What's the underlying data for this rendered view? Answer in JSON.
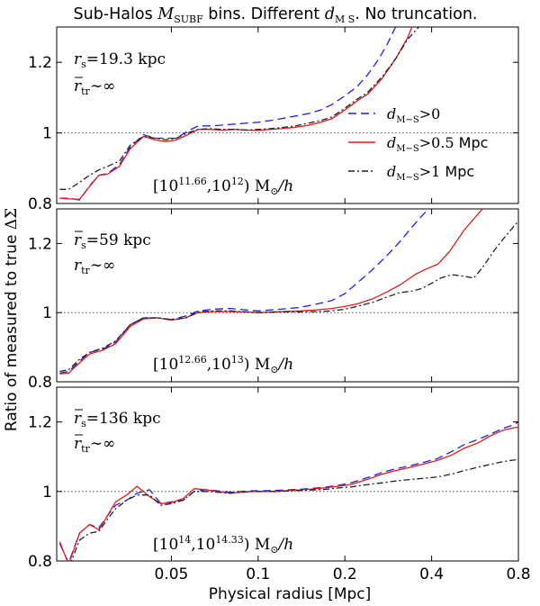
{
  "figure": {
    "title_parts": [
      "Sub-Halos ",
      "M",
      "SUBF",
      " bins. Different ",
      "d",
      "M S",
      ". No truncation."
    ],
    "xlabel": "Physical radius [Mpc]",
    "ylabel_parts": [
      "Ratio of measured to true ",
      "ΔΣ"
    ]
  },
  "legend": [
    {
      "name": "d",
      "sub": "M−S",
      "cond": ">0",
      "unit": ""
    },
    {
      "name": "d",
      "sub": "M−S",
      "cond": ">0.5",
      "unit": " Mpc"
    },
    {
      "name": "d",
      "sub": "M−S",
      "cond": ">1",
      "unit": " Mpc"
    }
  ],
  "panels": [
    {
      "line1": {
        "sym": "r",
        "bar": false,
        "sub": "s",
        "rel": "=19.3 ",
        "unit": "kpc"
      },
      "line2": {
        "sym": "r",
        "bar": true,
        "sub": "tr",
        "rel": "∼∞"
      },
      "bin": {
        "lo_exp": "11.66",
        "hi_exp": "12",
        "unit": "M",
        "sun": "⊙",
        "h": "/h"
      }
    },
    {
      "line1": {
        "sym": "r",
        "bar": true,
        "sub": "s",
        "rel": "=59 ",
        "unit": "kpc"
      },
      "line2": {
        "sym": "r",
        "bar": false,
        "sub": "tr",
        "rel": "∼∞"
      },
      "bin": {
        "lo_exp": "12.66",
        "hi_exp": "13",
        "unit": "M",
        "sun": "⊙",
        "h": "/h"
      }
    },
    {
      "line1": {
        "sym": "r",
        "bar": true,
        "sub": "s",
        "rel": "=136 ",
        "unit": "kpc"
      },
      "line2": {
        "sym": "r",
        "bar": true,
        "sub": "tr",
        "rel": "∼∞"
      },
      "bin": {
        "lo_exp": "14",
        "hi_exp": "14.33",
        "unit": "M",
        "sun": "⊙",
        "h": "/h"
      }
    }
  ],
  "chart_data": {
    "type": "line",
    "title": "Sub-Halos M_SUBF bins. Different d_M S. No truncation.",
    "xlabel": "Physical radius [Mpc]",
    "ylabel": "Ratio of measured to true ΔΣ",
    "xscale": "log",
    "xlim": [
      0.02,
      0.8
    ],
    "ylim": [
      0.8,
      1.3
    ],
    "xticks": [
      0.05,
      0.1,
      0.2,
      0.4,
      0.8
    ],
    "xtick_labels": [
      "0.05",
      "0.1",
      "0.2",
      "0.4",
      "0.8"
    ],
    "yticks": [
      0.8,
      1.0,
      1.2
    ],
    "ytick_labels": [
      "0.8",
      "1",
      "1.2"
    ],
    "reference_line": 1.0,
    "series_styles": [
      {
        "name": "d_M-S>0",
        "color": "#1f1fe0",
        "dash": "9,5"
      },
      {
        "name": "d_M-S>0.5 Mpc",
        "color": "#e01c1c",
        "dash": ""
      },
      {
        "name": "d_M-S>1 Mpc",
        "color": "#222222",
        "dash": "7,3,2,3"
      }
    ],
    "panels": [
      {
        "label": "[10^11.66, 10^12) Msun/h",
        "series": [
          {
            "name": "d_M-S>0",
            "x": [
              0.0205,
              0.022,
              0.024,
              0.026,
              0.028,
              0.03,
              0.033,
              0.036,
              0.04,
              0.044,
              0.048,
              0.052,
              0.057,
              0.062,
              0.068,
              0.075,
              0.083,
              0.092,
              0.1,
              0.11,
              0.12,
              0.135,
              0.15,
              0.165,
              0.18,
              0.2,
              0.22,
              0.24,
              0.26,
              0.28,
              0.3,
              0.32
            ],
            "y": [
              0.815,
              0.815,
              0.81,
              0.85,
              0.88,
              0.885,
              0.91,
              0.96,
              0.995,
              0.985,
              0.985,
              0.985,
              1.005,
              1.02,
              1.02,
              1.022,
              1.025,
              1.028,
              1.03,
              1.035,
              1.04,
              1.048,
              1.055,
              1.065,
              1.08,
              1.105,
              1.13,
              1.165,
              1.205,
              1.25,
              1.3,
              1.34
            ]
          },
          {
            "name": "d_M-S>0.5 Mpc",
            "x": [
              0.0205,
              0.022,
              0.024,
              0.026,
              0.028,
              0.03,
              0.033,
              0.036,
              0.04,
              0.044,
              0.048,
              0.052,
              0.057,
              0.062,
              0.068,
              0.075,
              0.083,
              0.092,
              0.1,
              0.11,
              0.12,
              0.135,
              0.15,
              0.165,
              0.18,
              0.2,
              0.22,
              0.24,
              0.27,
              0.3,
              0.33,
              0.35
            ],
            "y": [
              0.815,
              0.813,
              0.812,
              0.848,
              0.88,
              0.883,
              0.905,
              0.955,
              0.99,
              0.98,
              0.975,
              0.98,
              0.995,
              1.01,
              1.01,
              1.008,
              1.01,
              1.008,
              1.007,
              1.01,
              1.012,
              1.016,
              1.022,
              1.03,
              1.04,
              1.065,
              1.09,
              1.11,
              1.155,
              1.21,
              1.27,
              1.32
            ]
          },
          {
            "name": "d_M-S>1 Mpc",
            "x": [
              0.0205,
              0.022,
              0.024,
              0.026,
              0.028,
              0.03,
              0.033,
              0.036,
              0.04,
              0.044,
              0.048,
              0.052,
              0.057,
              0.062,
              0.068,
              0.075,
              0.083,
              0.092,
              0.1,
              0.11,
              0.12,
              0.135,
              0.15,
              0.165,
              0.18,
              0.2,
              0.22,
              0.24,
              0.27,
              0.3,
              0.33,
              0.37
            ],
            "y": [
              0.84,
              0.84,
              0.86,
              0.88,
              0.895,
              0.905,
              0.92,
              0.965,
              0.99,
              0.985,
              0.98,
              0.985,
              1.0,
              1.01,
              1.012,
              1.01,
              1.01,
              1.008,
              1.01,
              1.012,
              1.015,
              1.02,
              1.028,
              1.035,
              1.045,
              1.07,
              1.095,
              1.115,
              1.16,
              1.21,
              1.265,
              1.31
            ]
          }
        ]
      },
      {
        "label": "[10^12.66, 10^13) Msun/h",
        "series": [
          {
            "name": "d_M-S>0",
            "x": [
              0.0205,
              0.022,
              0.024,
              0.026,
              0.029,
              0.032,
              0.036,
              0.04,
              0.045,
              0.05,
              0.056,
              0.062,
              0.07,
              0.08,
              0.09,
              0.1,
              0.12,
              0.14,
              0.16,
              0.18,
              0.2,
              0.22,
              0.25,
              0.28,
              0.31,
              0.34,
              0.37,
              0.4
            ],
            "y": [
              0.825,
              0.83,
              0.86,
              0.885,
              0.895,
              0.915,
              0.965,
              0.985,
              0.985,
              0.98,
              0.99,
              1.005,
              1.01,
              1.012,
              1.008,
              1.005,
              1.01,
              1.015,
              1.025,
              1.035,
              1.055,
              1.085,
              1.125,
              1.165,
              1.205,
              1.245,
              1.28,
              1.31
            ]
          },
          {
            "name": "d_M-S>0.5 Mpc",
            "x": [
              0.0205,
              0.022,
              0.024,
              0.026,
              0.029,
              0.032,
              0.036,
              0.04,
              0.045,
              0.05,
              0.056,
              0.062,
              0.07,
              0.08,
              0.09,
              0.1,
              0.12,
              0.14,
              0.16,
              0.18,
              0.2,
              0.22,
              0.25,
              0.28,
              0.31,
              0.35,
              0.38,
              0.42,
              0.46,
              0.52,
              0.6
            ],
            "y": [
              0.823,
              0.825,
              0.855,
              0.88,
              0.892,
              0.91,
              0.96,
              0.982,
              0.985,
              0.978,
              0.985,
              1.0,
              1.003,
              1.003,
              1.002,
              1.0,
              1.003,
              1.005,
              1.008,
              1.012,
              1.018,
              1.025,
              1.04,
              1.06,
              1.08,
              1.11,
              1.125,
              1.14,
              1.175,
              1.24,
              1.3
            ]
          },
          {
            "name": "d_M-S>1 Mpc",
            "x": [
              0.0205,
              0.022,
              0.024,
              0.026,
              0.029,
              0.032,
              0.036,
              0.04,
              0.045,
              0.05,
              0.056,
              0.062,
              0.07,
              0.08,
              0.09,
              0.1,
              0.12,
              0.14,
              0.16,
              0.18,
              0.2,
              0.22,
              0.25,
              0.28,
              0.31,
              0.34,
              0.37,
              0.4,
              0.43,
              0.47,
              0.52,
              0.56,
              0.6,
              0.66,
              0.72,
              0.8
            ],
            "y": [
              0.83,
              0.835,
              0.865,
              0.885,
              0.898,
              0.918,
              0.965,
              0.985,
              0.985,
              0.98,
              0.985,
              1.002,
              1.005,
              1.005,
              1.002,
              1.0,
              1.002,
              1.002,
              1.003,
              1.005,
              1.01,
              1.018,
              1.03,
              1.045,
              1.058,
              1.062,
              1.07,
              1.085,
              1.1,
              1.11,
              1.105,
              1.1,
              1.13,
              1.18,
              1.22,
              1.265
            ]
          }
        ]
      },
      {
        "label": "[10^14, 10^14.33) Msun/h",
        "series": [
          {
            "name": "d_M-S>0",
            "x": [
              0.0205,
              0.022,
              0.024,
              0.026,
              0.028,
              0.03,
              0.032,
              0.035,
              0.038,
              0.042,
              0.046,
              0.05,
              0.055,
              0.06,
              0.066,
              0.072,
              0.08,
              0.088,
              0.096,
              0.105,
              0.115,
              0.13,
              0.15,
              0.17,
              0.19,
              0.21,
              0.24,
              0.27,
              0.3,
              0.34,
              0.38,
              0.42,
              0.47,
              0.52,
              0.58,
              0.64,
              0.7,
              0.76,
              0.8
            ],
            "y": [
              0.85,
              0.795,
              0.88,
              0.905,
              0.895,
              0.93,
              0.96,
              0.975,
              0.995,
              1.005,
              0.965,
              0.97,
              0.975,
              1.0,
              1.005,
              1.002,
              0.998,
              1.0,
              1.002,
              1.002,
              1.003,
              1.005,
              1.008,
              1.012,
              1.018,
              1.025,
              1.04,
              1.055,
              1.065,
              1.075,
              1.085,
              1.095,
              1.115,
              1.135,
              1.15,
              1.165,
              1.18,
              1.19,
              1.2
            ]
          },
          {
            "name": "d_M-S>0.5 Mpc",
            "x": [
              0.0205,
              0.022,
              0.024,
              0.026,
              0.028,
              0.03,
              0.032,
              0.035,
              0.038,
              0.042,
              0.046,
              0.05,
              0.055,
              0.06,
              0.066,
              0.072,
              0.08,
              0.088,
              0.096,
              0.105,
              0.115,
              0.13,
              0.15,
              0.17,
              0.19,
              0.21,
              0.24,
              0.27,
              0.3,
              0.34,
              0.38,
              0.42,
              0.47,
              0.52,
              0.58,
              0.64,
              0.7,
              0.76,
              0.8
            ],
            "y": [
              0.855,
              0.79,
              0.88,
              0.905,
              0.89,
              0.93,
              0.97,
              0.99,
              1.015,
              0.985,
              0.965,
              0.968,
              0.98,
              1.008,
              1.005,
              1.0,
              0.995,
              0.998,
              1.0,
              1.0,
              1.0,
              1.003,
              1.006,
              1.01,
              1.015,
              1.02,
              1.035,
              1.05,
              1.06,
              1.07,
              1.08,
              1.09,
              1.105,
              1.125,
              1.14,
              1.16,
              1.175,
              1.182,
              1.185
            ]
          },
          {
            "name": "d_M-S>1 Mpc",
            "x": [
              0.0205,
              0.022,
              0.024,
              0.026,
              0.028,
              0.03,
              0.032,
              0.035,
              0.038,
              0.042,
              0.046,
              0.05,
              0.055,
              0.06,
              0.066,
              0.072,
              0.08,
              0.088,
              0.096,
              0.105,
              0.115,
              0.13,
              0.15,
              0.17,
              0.19,
              0.21,
              0.24,
              0.27,
              0.3,
              0.34,
              0.38,
              0.42,
              0.47,
              0.52,
              0.58,
              0.64,
              0.7,
              0.76,
              0.8
            ],
            "y": [
              0.8,
              0.78,
              0.86,
              0.88,
              0.885,
              0.92,
              0.95,
              0.975,
              0.99,
              0.99,
              0.96,
              0.965,
              0.975,
              1.0,
              1.0,
              0.998,
              0.995,
              0.998,
              1.0,
              1.0,
              1.0,
              1.002,
              1.004,
              1.006,
              1.01,
              1.013,
              1.02,
              1.025,
              1.03,
              1.035,
              1.038,
              1.042,
              1.05,
              1.06,
              1.07,
              1.078,
              1.085,
              1.09,
              1.092
            ]
          }
        ]
      }
    ]
  }
}
